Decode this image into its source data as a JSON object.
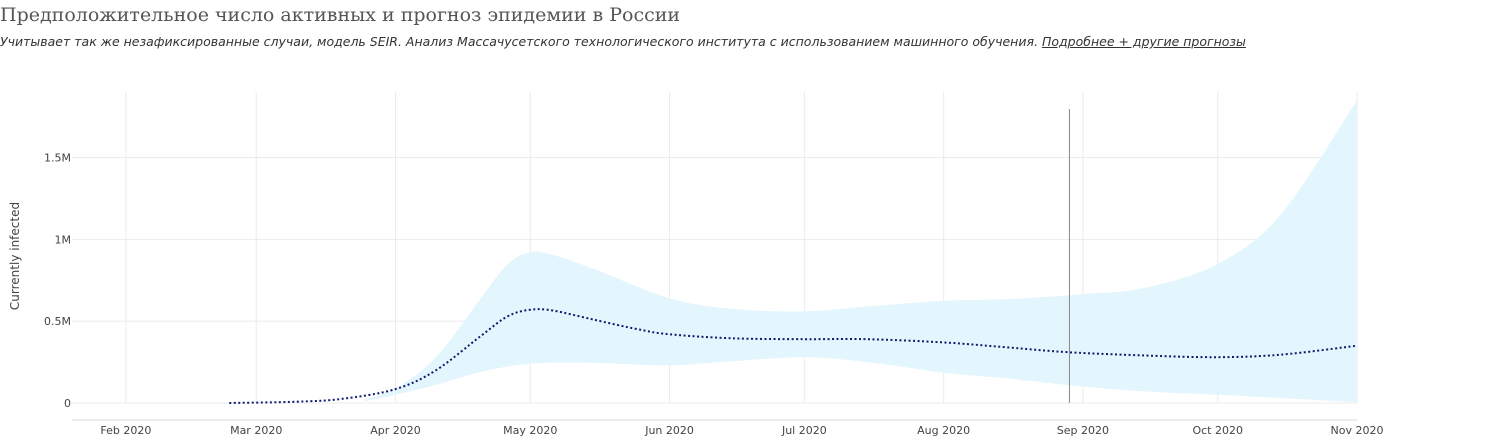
{
  "header": {
    "title": "Предположительное число активных и прогноз эпидемии в России",
    "subtitle": "Учитывает так же незафиксированные случаи, модель SEIR. Анализ Массачусетского технологического института с использованием машинного обучения.",
    "link_label": "Подробнее + другие прогнозы"
  },
  "colors": {
    "band": "#e4f6fd",
    "line": "#0d1a6e",
    "grid": "#ebebeb",
    "marker": "#888888"
  },
  "chart_data": {
    "type": "line",
    "title": "Предположительное число активных и прогноз эпидемии в России",
    "xlabel": "",
    "ylabel": "Currently infected",
    "x_axis": "date",
    "xlim": [
      "2020-01-20",
      "2020-11-01"
    ],
    "ylim": [
      0,
      1900000
    ],
    "grid": true,
    "x_ticks": [
      {
        "date": "2020-02-01",
        "label": "Feb 2020"
      },
      {
        "date": "2020-03-01",
        "label": "Mar 2020"
      },
      {
        "date": "2020-04-01",
        "label": "Apr 2020"
      },
      {
        "date": "2020-05-01",
        "label": "May 2020"
      },
      {
        "date": "2020-06-01",
        "label": "Jun 2020"
      },
      {
        "date": "2020-07-01",
        "label": "Jul 2020"
      },
      {
        "date": "2020-08-01",
        "label": "Aug 2020"
      },
      {
        "date": "2020-09-01",
        "label": "Sep 2020"
      },
      {
        "date": "2020-10-01",
        "label": "Oct 2020"
      },
      {
        "date": "2020-11-01",
        "label": "Nov 2020"
      }
    ],
    "y_ticks": [
      {
        "value": 0,
        "label": "0"
      },
      {
        "value": 500000,
        "label": "0.5M"
      },
      {
        "value": 1000000,
        "label": "1M"
      },
      {
        "value": 1500000,
        "label": "1.5M"
      }
    ],
    "vertical_marker": "2020-08-29",
    "series": [
      {
        "style": "dotted",
        "points": [
          [
            "2020-02-24",
            0
          ],
          [
            "2020-03-10",
            8000
          ],
          [
            "2020-03-20",
            25000
          ],
          [
            "2020-04-01",
            85000
          ],
          [
            "2020-04-10",
            200000
          ],
          [
            "2020-04-20",
            410000
          ],
          [
            "2020-04-26",
            530000
          ],
          [
            "2020-05-01",
            570000
          ],
          [
            "2020-05-06",
            565000
          ],
          [
            "2020-05-15",
            510000
          ],
          [
            "2020-05-25",
            450000
          ],
          [
            "2020-06-01",
            420000
          ],
          [
            "2020-06-15",
            395000
          ],
          [
            "2020-07-01",
            390000
          ],
          [
            "2020-07-15",
            390000
          ],
          [
            "2020-08-01",
            370000
          ],
          [
            "2020-08-15",
            340000
          ],
          [
            "2020-08-29",
            310000
          ],
          [
            "2020-09-15",
            290000
          ],
          [
            "2020-10-01",
            280000
          ],
          [
            "2020-10-15",
            295000
          ],
          [
            "2020-11-01",
            350000
          ]
        ]
      },
      {
        "name": "range",
        "type": "area",
        "points_upper": [
          [
            "2020-03-25",
            20000
          ],
          [
            "2020-04-01",
            90000
          ],
          [
            "2020-04-10",
            280000
          ],
          [
            "2020-04-20",
            640000
          ],
          [
            "2020-04-26",
            850000
          ],
          [
            "2020-05-01",
            920000
          ],
          [
            "2020-05-06",
            905000
          ],
          [
            "2020-05-15",
            820000
          ],
          [
            "2020-06-01",
            640000
          ],
          [
            "2020-06-15",
            575000
          ],
          [
            "2020-07-01",
            560000
          ],
          [
            "2020-07-15",
            590000
          ],
          [
            "2020-08-01",
            625000
          ],
          [
            "2020-08-15",
            635000
          ],
          [
            "2020-09-01",
            665000
          ],
          [
            "2020-09-15",
            705000
          ],
          [
            "2020-10-01",
            850000
          ],
          [
            "2020-10-15",
            1150000
          ],
          [
            "2020-11-01",
            1850000
          ]
        ],
        "points_lower": [
          [
            "2020-03-25",
            10000
          ],
          [
            "2020-04-01",
            50000
          ],
          [
            "2020-04-10",
            110000
          ],
          [
            "2020-04-20",
            190000
          ],
          [
            "2020-05-01",
            240000
          ],
          [
            "2020-05-15",
            245000
          ],
          [
            "2020-06-01",
            230000
          ],
          [
            "2020-06-15",
            255000
          ],
          [
            "2020-07-01",
            280000
          ],
          [
            "2020-07-15",
            250000
          ],
          [
            "2020-08-01",
            185000
          ],
          [
            "2020-08-15",
            150000
          ],
          [
            "2020-09-01",
            100000
          ],
          [
            "2020-09-15",
            70000
          ],
          [
            "2020-10-01",
            50000
          ],
          [
            "2020-10-15",
            30000
          ],
          [
            "2020-11-01",
            5000
          ]
        ]
      }
    ]
  }
}
